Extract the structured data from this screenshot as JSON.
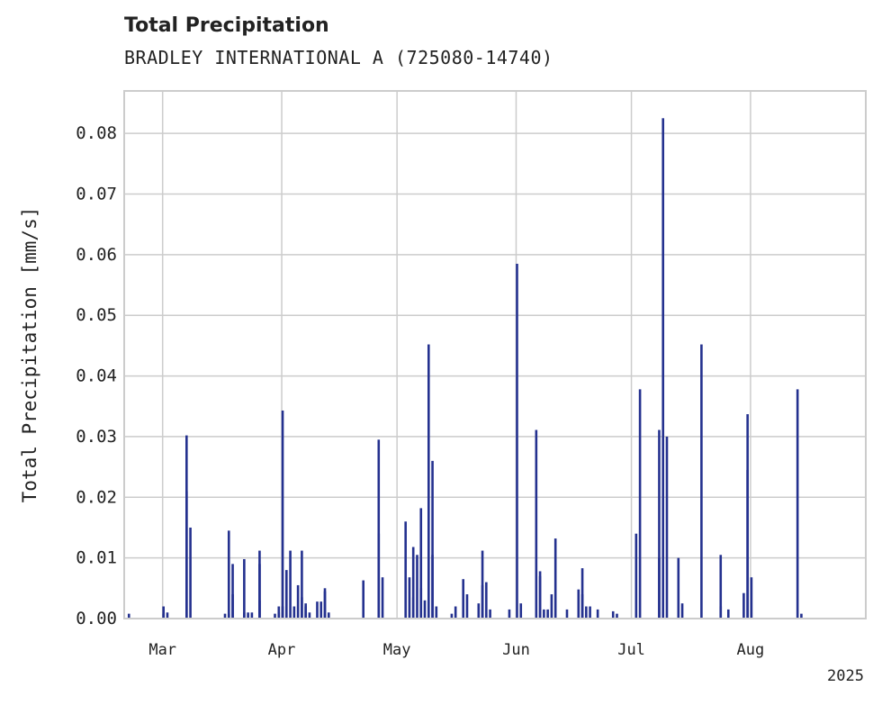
{
  "header": {
    "title": "Total Precipitation",
    "subtitle": "BRADLEY INTERNATIONAL A (725080-14740)"
  },
  "colors": {
    "bar": "#24318f",
    "grid": "#cccccc",
    "frame": "#cccccc"
  },
  "chart_data": {
    "type": "bar",
    "title": "Total Precipitation",
    "subtitle": "BRADLEY INTERNATIONAL A (725080-14740)",
    "xlabel": "",
    "ylabel": "Total Precipitation [mm/s]",
    "year_label": "2025",
    "ylim": [
      0,
      0.087
    ],
    "xlim": [
      "2025-02-19",
      "2025-08-31"
    ],
    "yticks": [
      "0.00",
      "0.01",
      "0.02",
      "0.03",
      "0.04",
      "0.05",
      "0.06",
      "0.07",
      "0.08"
    ],
    "xticks": [
      {
        "label": "Mar",
        "date": "2025-03-01"
      },
      {
        "label": "Apr",
        "date": "2025-04-01"
      },
      {
        "label": "May",
        "date": "2025-05-01"
      },
      {
        "label": "Jun",
        "date": "2025-06-01"
      },
      {
        "label": "Jul",
        "date": "2025-07-01"
      },
      {
        "label": "Aug",
        "date": "2025-08-01"
      }
    ],
    "grid": true,
    "series": [
      {
        "values": [
          [
            "2025-02-20",
            0.0008
          ],
          [
            "2025-03-01",
            0.0008
          ],
          [
            "2025-03-01",
            0.002
          ],
          [
            "2025-03-02",
            0.001
          ],
          [
            "2025-03-07",
            0.021
          ],
          [
            "2025-03-07",
            0.0302
          ],
          [
            "2025-03-08",
            0.015
          ],
          [
            "2025-03-17",
            0.0008
          ],
          [
            "2025-03-18",
            0.0008
          ],
          [
            "2025-03-18",
            0.0145
          ],
          [
            "2025-03-19",
            0.009
          ],
          [
            "2025-03-19",
            0.004
          ],
          [
            "2025-03-22",
            0.001
          ],
          [
            "2025-03-22",
            0.0098
          ],
          [
            "2025-03-23",
            0.001
          ],
          [
            "2025-03-24",
            0.001
          ],
          [
            "2025-03-26",
            0.009
          ],
          [
            "2025-03-26",
            0.0112
          ],
          [
            "2025-03-26",
            0.003
          ],
          [
            "2025-03-30",
            0.0008
          ],
          [
            "2025-03-31",
            0.002
          ],
          [
            "2025-03-31",
            0.001
          ],
          [
            "2025-04-01",
            0.002
          ],
          [
            "2025-04-01",
            0.0343
          ],
          [
            "2025-04-02",
            0.008
          ],
          [
            "2025-04-03",
            0.0112
          ],
          [
            "2025-04-04",
            0.002
          ],
          [
            "2025-04-05",
            0.0055
          ],
          [
            "2025-04-06",
            0.0112
          ],
          [
            "2025-04-06",
            0.0035
          ],
          [
            "2025-04-07",
            0.0025
          ],
          [
            "2025-04-07",
            0.002
          ],
          [
            "2025-04-08",
            0.001
          ],
          [
            "2025-04-10",
            0.0028
          ],
          [
            "2025-04-11",
            0.0028
          ],
          [
            "2025-04-12",
            0.0045
          ],
          [
            "2025-04-12",
            0.005
          ],
          [
            "2025-04-13",
            0.001
          ],
          [
            "2025-04-22",
            0.0063
          ],
          [
            "2025-04-26",
            0.0295
          ],
          [
            "2025-04-26",
            0.014
          ],
          [
            "2025-04-27",
            0.0068
          ],
          [
            "2025-05-03",
            0.016
          ],
          [
            "2025-05-04",
            0.0068
          ],
          [
            "2025-05-05",
            0.0035
          ],
          [
            "2025-05-05",
            0.0118
          ],
          [
            "2025-05-06",
            0.0105
          ],
          [
            "2025-05-07",
            0.0182
          ],
          [
            "2025-05-07",
            0.005
          ],
          [
            "2025-05-08",
            0.003
          ],
          [
            "2025-05-09",
            0.0452
          ],
          [
            "2025-05-10",
            0.026
          ],
          [
            "2025-05-10",
            0.0105
          ],
          [
            "2025-05-11",
            0.002
          ],
          [
            "2025-05-15",
            0.0008
          ],
          [
            "2025-05-16",
            0.002
          ],
          [
            "2025-05-18",
            0.0065
          ],
          [
            "2025-05-19",
            0.004
          ],
          [
            "2025-05-22",
            0.0025
          ],
          [
            "2025-05-23",
            0.0055
          ],
          [
            "2025-05-23",
            0.0112
          ],
          [
            "2025-05-24",
            0.006
          ],
          [
            "2025-05-25",
            0.0015
          ],
          [
            "2025-05-30",
            0.0015
          ],
          [
            "2025-06-01",
            0.0585
          ],
          [
            "2025-06-02",
            0.0025
          ],
          [
            "2025-06-06",
            0.0311
          ],
          [
            "2025-06-07",
            0.0078
          ],
          [
            "2025-06-07",
            0.007
          ],
          [
            "2025-06-08",
            0.0015
          ],
          [
            "2025-06-09",
            0.0015
          ],
          [
            "2025-06-10",
            0.004
          ],
          [
            "2025-06-11",
            0.0132
          ],
          [
            "2025-06-14",
            0.0015
          ],
          [
            "2025-06-17",
            0.0048
          ],
          [
            "2025-06-18",
            0.0083
          ],
          [
            "2025-06-18",
            0.004
          ],
          [
            "2025-06-19",
            0.002
          ],
          [
            "2025-06-20",
            0.002
          ],
          [
            "2025-06-22",
            0.0015
          ],
          [
            "2025-06-26",
            0.0012
          ],
          [
            "2025-06-27",
            0.0008
          ],
          [
            "2025-07-02",
            0.014
          ],
          [
            "2025-07-03",
            0.0378
          ],
          [
            "2025-07-08",
            0.0311
          ],
          [
            "2025-07-08",
            0.01
          ],
          [
            "2025-07-09",
            0.0825
          ],
          [
            "2025-07-10",
            0.03
          ],
          [
            "2025-07-13",
            0.01
          ],
          [
            "2025-07-14",
            0.0025
          ],
          [
            "2025-07-19",
            0.0452
          ],
          [
            "2025-07-24",
            0.0105
          ],
          [
            "2025-07-24",
            0.002
          ],
          [
            "2025-07-26",
            0.0015
          ],
          [
            "2025-07-30",
            0.0042
          ],
          [
            "2025-07-31",
            0.0337
          ],
          [
            "2025-07-31",
            0.0245
          ],
          [
            "2025-08-01",
            0.0068
          ],
          [
            "2025-08-13",
            0.0378
          ],
          [
            "2025-08-14",
            0.0008
          ]
        ]
      }
    ]
  }
}
